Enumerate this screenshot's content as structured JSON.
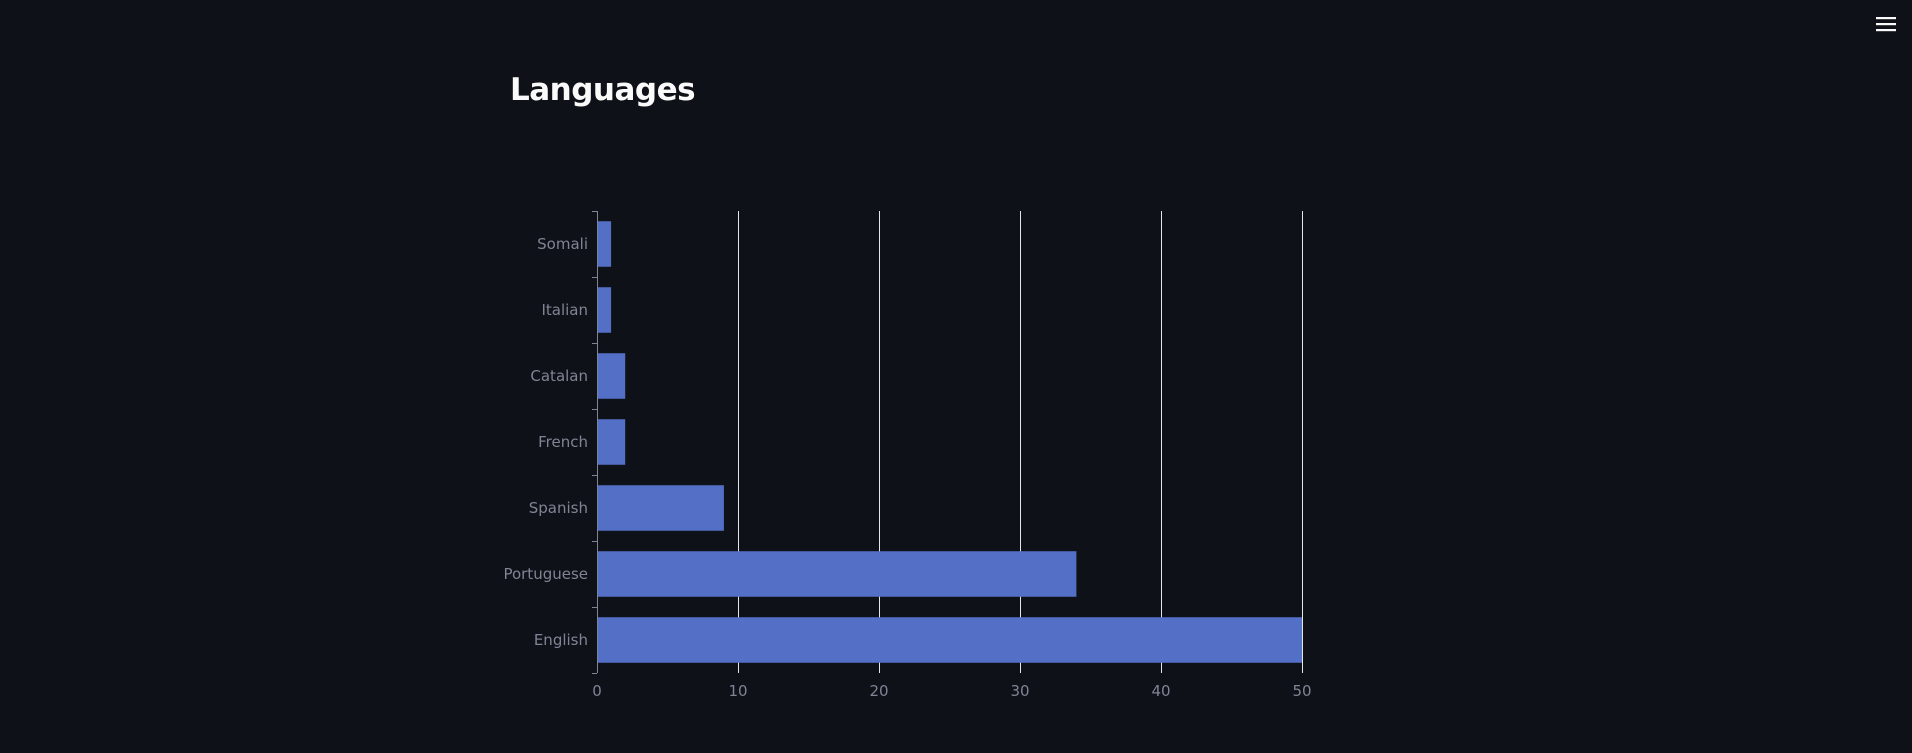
{
  "page": {
    "title": "Languages",
    "menu_icon": "hamburger-menu-icon"
  },
  "colors": {
    "background": "#0e1117",
    "bar": "#5470c6",
    "grid": "#e6e6e6",
    "axis_text": "#808495",
    "title": "#fafafa"
  },
  "chart_data": {
    "type": "bar",
    "orientation": "horizontal",
    "categories": [
      "Somali",
      "Italian",
      "Catalan",
      "French",
      "Spanish",
      "Portuguese",
      "English"
    ],
    "values": [
      1,
      1,
      2,
      2,
      9,
      34,
      50
    ],
    "xlim": [
      0,
      50
    ],
    "xticks": [
      0,
      10,
      20,
      30,
      40,
      50
    ],
    "grid": "vertical",
    "title": "",
    "xlabel": "",
    "ylabel": ""
  }
}
